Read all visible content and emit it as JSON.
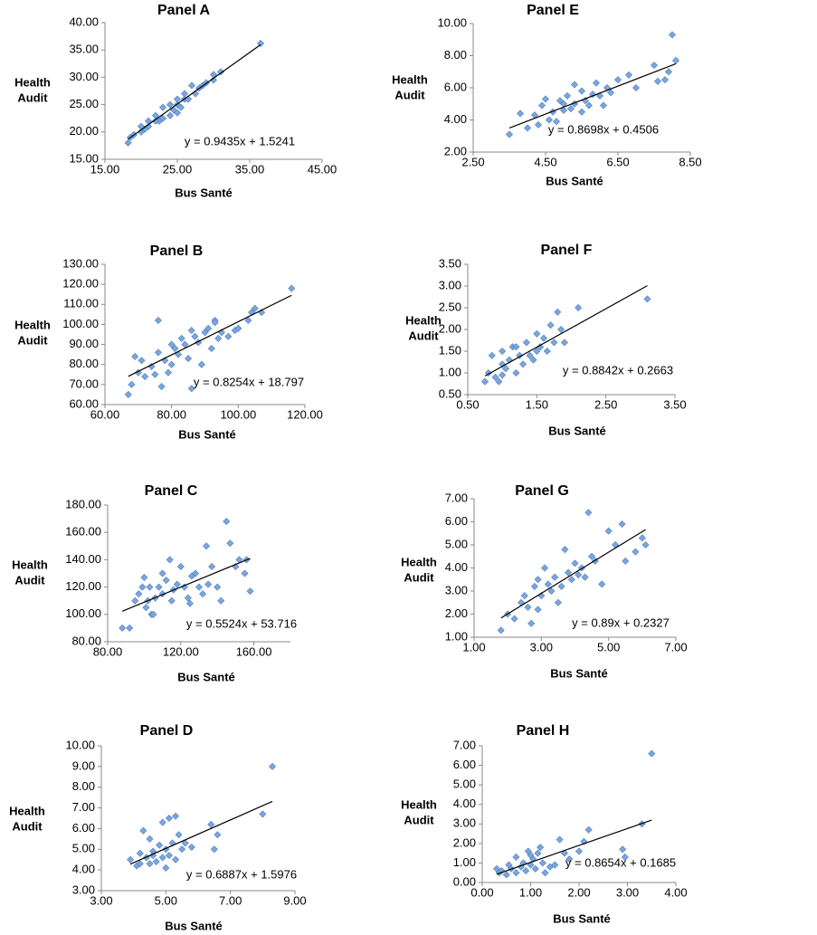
{
  "chart_data": [
    {
      "type": "scatter",
      "title": "Panel A",
      "x_label": "Bus Santé",
      "y_label": [
        "Health",
        "Audit"
      ],
      "color": "#7aa6dc",
      "x": [
        18.2,
        18.5,
        19,
        20,
        20.5,
        21,
        21,
        22,
        22.5,
        23,
        23,
        24,
        24,
        24.5,
        25,
        25,
        25.5,
        26,
        26,
        27,
        27.5,
        28,
        28.5,
        29,
        30,
        30,
        31,
        36.5,
        22,
        25,
        26.5,
        20
      ],
      "values": [
        18,
        19,
        19.5,
        21,
        20.5,
        22,
        21,
        23,
        22,
        24.5,
        22.5,
        23,
        25,
        24,
        26,
        25,
        24.5,
        26,
        27,
        28.5,
        27,
        28,
        28.5,
        29,
        29.5,
        30.5,
        31,
        36.2,
        22,
        23.5,
        26,
        20
      ],
      "trendline": {
        "slope": 0.9435,
        "intercept": 1.5241,
        "label": "y = 0.9435x + 1.5241"
      },
      "xlim": [
        15,
        45
      ],
      "ylim": [
        15,
        40
      ],
      "xticks": [
        {
          "value": 15,
          "label": "15.00"
        },
        {
          "value": 25,
          "label": "25.00"
        },
        {
          "value": 35,
          "label": "35.00"
        },
        {
          "value": 45,
          "label": "45.00"
        }
      ],
      "yticks": [
        {
          "value": 15,
          "label": "15.00"
        },
        {
          "value": 20,
          "label": "20.00"
        },
        {
          "value": 25,
          "label": "25.00"
        },
        {
          "value": 30,
          "label": "30.00"
        },
        {
          "value": 35,
          "label": "35.00"
        },
        {
          "value": 40,
          "label": "40.00"
        }
      ]
    },
    {
      "type": "scatter",
      "title": "Panel B",
      "x_label": "Bus Santé",
      "y_label": [
        "Health",
        "Audit"
      ],
      "color": "#7aa6dc",
      "x": [
        67,
        68,
        69,
        70,
        71,
        72,
        74,
        75,
        76,
        76,
        77,
        78,
        79,
        80,
        81,
        82,
        83,
        84,
        85,
        86,
        87,
        88,
        89,
        90,
        91,
        92,
        93,
        94,
        95,
        97,
        99,
        100,
        103,
        104,
        105,
        107,
        116,
        86,
        93,
        80
      ],
      "values": [
        65,
        70,
        84,
        76,
        82,
        74,
        79,
        75,
        102,
        86,
        69,
        82,
        76,
        90,
        88,
        85,
        93,
        90,
        83,
        97,
        94,
        91,
        80,
        96,
        98,
        88,
        102,
        93,
        96,
        94,
        97,
        98,
        102,
        106,
        108,
        106,
        118,
        68,
        101,
        80
      ],
      "trendline": {
        "slope": 0.8254,
        "intercept": 18.797,
        "label": "y = 0.8254x + 18.797"
      },
      "xlim": [
        60,
        120
      ],
      "ylim": [
        60,
        130
      ],
      "xticks": [
        {
          "value": 60,
          "label": "60.00"
        },
        {
          "value": 80,
          "label": "80.00"
        },
        {
          "value": 100,
          "label": "100.00"
        },
        {
          "value": 120,
          "label": "120.00"
        }
      ],
      "yticks": [
        {
          "value": 60,
          "label": "60.00"
        },
        {
          "value": 70,
          "label": "70.00"
        },
        {
          "value": 80,
          "label": "80.00"
        },
        {
          "value": 90,
          "label": "90.00"
        },
        {
          "value": 100,
          "label": "100.00"
        },
        {
          "value": 110,
          "label": "110.00"
        },
        {
          "value": 120,
          "label": "120.00"
        },
        {
          "value": 130,
          "label": "130.00"
        }
      ]
    },
    {
      "type": "scatter",
      "title": "Panel C",
      "x_label": "Bus Santé",
      "y_label": [
        "Health",
        "Audit"
      ],
      "color": "#7aa6dc",
      "x": [
        88,
        92,
        95,
        97,
        99,
        100,
        101,
        102,
        104,
        105,
        106,
        108,
        110,
        112,
        114,
        115,
        116,
        118,
        120,
        122,
        124,
        126,
        128,
        130,
        132,
        134,
        135,
        137,
        140,
        142,
        145,
        147,
        150,
        152,
        155,
        156,
        158,
        110,
        103,
        125
      ],
      "values": [
        90,
        90,
        110,
        115,
        120,
        127,
        105,
        110,
        100,
        100,
        112,
        120,
        115,
        125,
        140,
        110,
        118,
        122,
        135,
        120,
        112,
        128,
        130,
        120,
        115,
        150,
        122,
        135,
        120,
        110,
        168,
        152,
        135,
        140,
        130,
        140,
        117,
        130,
        120,
        108
      ],
      "trendline": {
        "slope": 0.5524,
        "intercept": 53.716,
        "label": "y = 0.5524x + 53.716"
      },
      "xlim": [
        80,
        180
      ],
      "ylim": [
        80,
        180
      ],
      "xticks": [
        {
          "value": 80,
          "label": "80.00"
        },
        {
          "value": 120,
          "label": "120.00"
        },
        {
          "value": 160,
          "label": "160.00"
        }
      ],
      "yticks": [
        {
          "value": 80,
          "label": "80.00"
        },
        {
          "value": 100,
          "label": "100.00"
        },
        {
          "value": 120,
          "label": "120.00"
        },
        {
          "value": 140,
          "label": "140.00"
        },
        {
          "value": 160,
          "label": "160.00"
        },
        {
          "value": 180,
          "label": "180.00"
        }
      ]
    },
    {
      "type": "scatter",
      "title": "Panel D",
      "x_label": "Bus Santé",
      "y_label": [
        "Health",
        "Audit"
      ],
      "color": "#7aa6dc",
      "x": [
        3.9,
        4.1,
        4.2,
        4.3,
        4.4,
        4.5,
        4.5,
        4.6,
        4.7,
        4.8,
        4.9,
        4.9,
        5,
        5,
        5.1,
        5.1,
        5.2,
        5.3,
        5.3,
        5.4,
        5.5,
        5.6,
        5.8,
        6.4,
        6.5,
        6.6,
        8,
        8.3,
        4.2,
        4.6
      ],
      "values": [
        4.5,
        4.2,
        4.8,
        5.9,
        4.6,
        4.3,
        5.5,
        4.9,
        4.4,
        5.2,
        4.6,
        6.3,
        4.1,
        5,
        4.7,
        6.5,
        5.3,
        4.5,
        6.6,
        5.7,
        5.0,
        5.3,
        5.1,
        6.2,
        5.0,
        5.7,
        6.7,
        9,
        4.3,
        4.7
      ],
      "trendline": {
        "slope": 0.6887,
        "intercept": 1.5976,
        "label": "y = 0.6887x + 1.5976"
      },
      "xlim": [
        3,
        9
      ],
      "ylim": [
        3,
        10
      ],
      "xticks": [
        {
          "value": 3,
          "label": "3.00"
        },
        {
          "value": 5,
          "label": "5.00"
        },
        {
          "value": 7,
          "label": "7.00"
        },
        {
          "value": 9,
          "label": "9.00"
        }
      ],
      "yticks": [
        {
          "value": 3,
          "label": "3.00"
        },
        {
          "value": 4,
          "label": "4.00"
        },
        {
          "value": 5,
          "label": "5.00"
        },
        {
          "value": 6,
          "label": "6.00"
        },
        {
          "value": 7,
          "label": "7.00"
        },
        {
          "value": 8,
          "label": "8.00"
        },
        {
          "value": 9,
          "label": "9.00"
        },
        {
          "value": 10,
          "label": "10.00"
        }
      ]
    },
    {
      "type": "scatter",
      "title": "Panel E",
      "x_label": "Bus Santé",
      "y_label": [
        "Health",
        "Audit"
      ],
      "color": "#7aa6dc",
      "x": [
        3.5,
        3.8,
        4,
        4.2,
        4.3,
        4.5,
        4.6,
        4.7,
        4.8,
        5,
        5,
        5.1,
        5.2,
        5.3,
        5.3,
        5.5,
        5.5,
        5.6,
        5.8,
        5.9,
        6,
        6.1,
        6.2,
        6.3,
        6.8,
        7,
        7.5,
        7.6,
        7.8,
        8,
        8.1,
        7.9,
        6.5,
        5.7,
        4.9,
        4.4
      ],
      "values": [
        3.1,
        4.4,
        3.5,
        4.3,
        3.7,
        5.3,
        4,
        4.5,
        3.9,
        4.6,
        5,
        5.5,
        4.7,
        6.2,
        5,
        5.8,
        4.5,
        5.2,
        5.6,
        6.3,
        5.5,
        4.9,
        6,
        5.7,
        6.8,
        6,
        7.4,
        6.4,
        6.5,
        9.3,
        7.7,
        7,
        6.5,
        4.9,
        5.2,
        4.9
      ],
      "trendline": {
        "slope": 0.8698,
        "intercept": 0.4506,
        "label": "y = 0.8698x + 0.4506"
      },
      "xlim": [
        2.5,
        8.5
      ],
      "ylim": [
        2,
        10
      ],
      "xticks": [
        {
          "value": 2.5,
          "label": "2.50"
        },
        {
          "value": 4.5,
          "label": "4.50"
        },
        {
          "value": 6.5,
          "label": "6.50"
        },
        {
          "value": 8.5,
          "label": "8.50"
        }
      ],
      "yticks": [
        {
          "value": 2,
          "label": "2.00"
        },
        {
          "value": 4,
          "label": "4.00"
        },
        {
          "value": 6,
          "label": "6.00"
        },
        {
          "value": 8,
          "label": "8.00"
        },
        {
          "value": 10,
          "label": "10.00"
        }
      ]
    },
    {
      "type": "scatter",
      "title": "Panel F",
      "x_label": "Bus Santé",
      "y_label": [
        "Health",
        "Audit"
      ],
      "color": "#7aa6dc",
      "x": [
        0.75,
        0.8,
        0.85,
        0.9,
        0.95,
        1,
        1,
        1.05,
        1.1,
        1.15,
        1.2,
        1.25,
        1.3,
        1.35,
        1.4,
        1.45,
        1.5,
        1.5,
        1.55,
        1.6,
        1.65,
        1.7,
        1.75,
        1.8,
        1.85,
        1.9,
        2.1,
        3.1,
        1.2,
        1.0
      ],
      "values": [
        0.8,
        1,
        1.4,
        0.9,
        0.8,
        1.2,
        1.5,
        1.1,
        1.3,
        1.6,
        1.0,
        1.4,
        1.2,
        1.7,
        1.4,
        1.3,
        1.9,
        1.5,
        1.6,
        1.8,
        1.5,
        2.1,
        1.7,
        2.4,
        2,
        1.7,
        2.5,
        2.7,
        1.6,
        0.95
      ],
      "trendline": {
        "slope": 0.8842,
        "intercept": 0.2663,
        "label": "y = 0.8842x + 0.2663"
      },
      "xlim": [
        0.5,
        3.5
      ],
      "ylim": [
        0.5,
        3.5
      ],
      "xticks": [
        {
          "value": 0.5,
          "label": "0.50"
        },
        {
          "value": 1.5,
          "label": "1.50"
        },
        {
          "value": 2.5,
          "label": "2.50"
        },
        {
          "value": 3.5,
          "label": "3.50"
        }
      ],
      "yticks": [
        {
          "value": 0.5,
          "label": "0.50"
        },
        {
          "value": 1,
          "label": "1.00"
        },
        {
          "value": 1.5,
          "label": "1.50"
        },
        {
          "value": 2,
          "label": "2.00"
        },
        {
          "value": 2.5,
          "label": "2.50"
        },
        {
          "value": 3,
          "label": "3.00"
        },
        {
          "value": 3.5,
          "label": "3.50"
        }
      ]
    },
    {
      "type": "scatter",
      "title": "Panel G",
      "x_label": "Bus Santé",
      "y_label": [
        "Health",
        "Audit"
      ],
      "color": "#7aa6dc",
      "x": [
        1.8,
        2,
        2.2,
        2.4,
        2.5,
        2.6,
        2.7,
        2.8,
        2.9,
        3,
        3.1,
        3.2,
        3.3,
        3.4,
        3.5,
        3.6,
        3.7,
        3.8,
        3.9,
        4,
        4.1,
        4.2,
        4.4,
        4.5,
        4.6,
        4.8,
        5,
        5.2,
        5.4,
        5.5,
        5.8,
        6.0,
        6.1,
        2.9,
        4.3
      ],
      "values": [
        1.3,
        2,
        1.8,
        2.5,
        2.8,
        2.3,
        1.6,
        3.2,
        3.5,
        2.8,
        4.0,
        3.3,
        3.0,
        3.6,
        2.5,
        3.2,
        4.8,
        3.8,
        3.5,
        4.2,
        3.7,
        4.0,
        6.4,
        4.5,
        4.3,
        3.3,
        5.6,
        5.0,
        5.9,
        4.3,
        4.7,
        5.3,
        5.0,
        2.2,
        3.6
      ],
      "trendline": {
        "slope": 0.89,
        "intercept": 0.2327,
        "label": "y = 0.89x + 0.2327"
      },
      "xlim": [
        1,
        7
      ],
      "ylim": [
        1,
        7
      ],
      "xticks": [
        {
          "value": 1,
          "label": "1.00"
        },
        {
          "value": 3,
          "label": "3.00"
        },
        {
          "value": 5,
          "label": "5.00"
        },
        {
          "value": 7,
          "label": "7.00"
        }
      ],
      "yticks": [
        {
          "value": 1,
          "label": "1.00"
        },
        {
          "value": 2,
          "label": "2.00"
        },
        {
          "value": 3,
          "label": "3.00"
        },
        {
          "value": 4,
          "label": "4.00"
        },
        {
          "value": 5,
          "label": "5.00"
        },
        {
          "value": 6,
          "label": "6.00"
        },
        {
          "value": 7,
          "label": "7.00"
        }
      ]
    },
    {
      "type": "scatter",
      "title": "Panel H",
      "x_label": "Bus Santé",
      "y_label": [
        "Health",
        "Audit"
      ],
      "color": "#7aa6dc",
      "x": [
        0.3,
        0.35,
        0.4,
        0.5,
        0.55,
        0.6,
        0.7,
        0.7,
        0.8,
        0.85,
        0.9,
        0.95,
        1.0,
        1.05,
        1.1,
        1.15,
        1.2,
        1.25,
        1.3,
        1.4,
        1.5,
        1.6,
        1.7,
        1.8,
        2.0,
        2.1,
        2.2,
        2.9,
        2.95,
        3.3,
        3.5,
        1.0
      ],
      "values": [
        0.7,
        0.5,
        0.6,
        0.4,
        0.9,
        0.7,
        1.3,
        0.5,
        0.8,
        1.0,
        0.6,
        1.6,
        0.9,
        1.2,
        0.7,
        1.5,
        1.8,
        1.0,
        0.5,
        0.8,
        0.9,
        2.2,
        1.5,
        1.2,
        1.6,
        2.1,
        2.7,
        1.7,
        1.3,
        3.0,
        6.6,
        1.4
      ],
      "trendline": {
        "slope": 0.8654,
        "intercept": 0.1685,
        "label": "y = 0.8654x + 0.1685"
      },
      "xlim": [
        0,
        4
      ],
      "ylim": [
        0,
        7
      ],
      "xticks": [
        {
          "value": 0,
          "label": "0.00"
        },
        {
          "value": 1,
          "label": "1.00"
        },
        {
          "value": 2,
          "label": "2.00"
        },
        {
          "value": 3,
          "label": "3.00"
        },
        {
          "value": 4,
          "label": "4.00"
        }
      ],
      "yticks": [
        {
          "value": 0,
          "label": "0.00"
        },
        {
          "value": 1,
          "label": "1.00"
        },
        {
          "value": 2,
          "label": "2.00"
        },
        {
          "value": 3,
          "label": "3.00"
        },
        {
          "value": 4,
          "label": "4.00"
        },
        {
          "value": 5,
          "label": "5.00"
        },
        {
          "value": 6,
          "label": "6.00"
        },
        {
          "value": 7,
          "label": "7.00"
        }
      ]
    }
  ]
}
